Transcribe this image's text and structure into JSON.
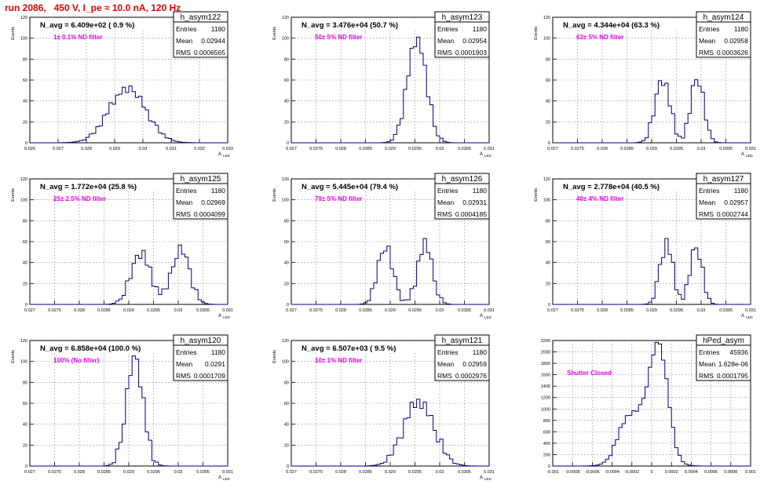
{
  "header": {
    "run_title": "run 2086,   450 V, I_pe ≈ 10.0 nA, 120 Hz"
  },
  "colors": {
    "title_red": "#e00000",
    "note_magenta": "#ee00ee",
    "hist_blue": "#000080",
    "grid": "#999999"
  },
  "chart_data": [
    {
      "type": "histogram",
      "name": "h_asym122",
      "avg_label": "N_avg = 6.409e+02 ( 0.9 %)",
      "note": "1± 0.1% ND filter",
      "stats": {
        "entries": "1180",
        "mean": "0.02944",
        "rms": "0.0006565"
      },
      "ylabel": "Events",
      "xlabel": "A",
      "xlabel_sub": "LED",
      "x_range": [
        0.026,
        0.033
      ],
      "y_range": [
        0,
        120
      ],
      "x_ticks": [
        "0.026",
        "0.027",
        "0.028",
        "0.029",
        "0.03",
        "0.031",
        "0.032",
        "0.033"
      ],
      "y_ticks": [
        "0",
        "20",
        "40",
        "60",
        "80",
        "100",
        "120"
      ],
      "peaks": [
        {
          "mu": 0.02945,
          "sigma": 0.00065,
          "h": 52
        }
      ],
      "noise": [
        2,
        -2,
        3,
        -1,
        4,
        -3,
        1,
        -2,
        2,
        -4,
        3,
        0,
        -2,
        4,
        -1,
        2,
        -3,
        1,
        3,
        -2
      ]
    },
    {
      "type": "histogram",
      "name": "h_asym123",
      "avg_label": "N_avg = 3.476e+04 (50.7 %)",
      "note": "50± 5% ND filter",
      "stats": {
        "entries": "1180",
        "mean": "0.02954",
        "rms": "0.0001903"
      },
      "ylabel": "Events",
      "xlabel": "A",
      "xlabel_sub": "LED",
      "x_range": [
        0.027,
        0.031
      ],
      "y_range": [
        0,
        120
      ],
      "x_ticks": [
        "0.027",
        "0.0275",
        "0.028",
        "0.0285",
        "0.029",
        "0.0295",
        "0.03",
        "0.0305",
        "0.031"
      ],
      "y_ticks": [
        "0",
        "20",
        "40",
        "60",
        "80",
        "100",
        "120"
      ],
      "peaks": [
        {
          "mu": 0.02954,
          "sigma": 0.00019,
          "h": 100
        }
      ],
      "noise": [
        3,
        -4,
        6,
        -2,
        5,
        -6,
        2,
        -3,
        4,
        -5,
        6,
        -1,
        -3,
        5,
        -2,
        3
      ]
    },
    {
      "type": "histogram",
      "name": "h_asym124",
      "avg_label": "N_avg = 4.344e+04 (63.3 %)",
      "note": "63± 5% ND filter",
      "stats": {
        "entries": "1180",
        "mean": "0.02958",
        "rms": "0.0003626"
      },
      "ylabel": "Events",
      "xlabel": "A",
      "xlabel_sub": "LED",
      "x_range": [
        0.027,
        0.031
      ],
      "y_range": [
        0,
        120
      ],
      "x_ticks": [
        "0.027",
        "0.0275",
        "0.028",
        "0.0285",
        "0.029",
        "0.0295",
        "0.03",
        "0.0305",
        "0.031"
      ],
      "y_ticks": [
        "0",
        "20",
        "40",
        "60",
        "80",
        "100",
        "120"
      ],
      "peaks": [
        {
          "mu": 0.02922,
          "sigma": 0.00015,
          "h": 60
        },
        {
          "mu": 0.02992,
          "sigma": 0.00013,
          "h": 62
        }
      ],
      "noise": [
        3,
        -5,
        5,
        -2,
        6,
        -4,
        2,
        -6,
        4,
        -3,
        5,
        -1,
        -4,
        6,
        -2,
        3
      ]
    },
    {
      "type": "histogram",
      "name": "h_asym125",
      "avg_label": "N_avg = 1.772e+04 (25.8 %)",
      "note": "25± 2.5% ND filter",
      "stats": {
        "entries": "1180",
        "mean": "0.02969",
        "rms": "0.0004099"
      },
      "ylabel": "Events",
      "xlabel": "A",
      "xlabel_sub": "LED",
      "x_range": [
        0.027,
        0.031
      ],
      "y_range": [
        0,
        120
      ],
      "x_ticks": [
        "0.027",
        "0.0275",
        "0.028",
        "0.0285",
        "0.029",
        "0.0295",
        "0.03",
        "0.0305",
        "0.031"
      ],
      "y_ticks": [
        "0",
        "20",
        "40",
        "60",
        "80",
        "100",
        "120"
      ],
      "peaks": [
        {
          "mu": 0.02925,
          "sigma": 0.0002,
          "h": 48
        },
        {
          "mu": 0.03005,
          "sigma": 0.00018,
          "h": 52
        }
      ],
      "noise": [
        3,
        -4,
        5,
        -3,
        4,
        -5,
        2,
        -3,
        5,
        -2,
        4,
        -1,
        -3,
        5,
        -2,
        3
      ]
    },
    {
      "type": "histogram",
      "name": "h_asym126",
      "avg_label": "N_avg = 5.445e+04 (79.4 %)",
      "note": "79± 5% ND filter",
      "stats": {
        "entries": "1180",
        "mean": "0.02931",
        "rms": "0.0004185"
      },
      "ylabel": "Events",
      "xlabel": "A",
      "xlabel_sub": "LED",
      "x_range": [
        0.027,
        0.031
      ],
      "y_range": [
        0,
        120
      ],
      "x_ticks": [
        "0.027",
        "0.0275",
        "0.028",
        "0.0285",
        "0.029",
        "0.0295",
        "0.03",
        "0.0305",
        "0.031"
      ],
      "y_ticks": [
        "0",
        "20",
        "40",
        "60",
        "80",
        "100",
        "120"
      ],
      "peaks": [
        {
          "mu": 0.0289,
          "sigma": 0.00015,
          "h": 55
        },
        {
          "mu": 0.0297,
          "sigma": 0.00015,
          "h": 57
        }
      ],
      "noise": [
        4,
        -5,
        6,
        -3,
        5,
        -6,
        3,
        -4,
        6,
        -2,
        5,
        -1,
        -4,
        6,
        -3,
        4
      ]
    },
    {
      "type": "histogram",
      "name": "h_asym127",
      "avg_label": "N_avg = 2.778e+04 (40.5 %)",
      "note": "40± 4% ND filter",
      "stats": {
        "entries": "1180",
        "mean": "0.02957",
        "rms": "0.0002744"
      },
      "ylabel": "Events",
      "xlabel": "A",
      "xlabel_sub": "LED",
      "x_range": [
        0.027,
        0.031
      ],
      "y_range": [
        0,
        120
      ],
      "x_ticks": [
        "0.027",
        "0.0275",
        "0.028",
        "0.0285",
        "0.029",
        "0.0295",
        "0.03",
        "0.0305",
        "0.031"
      ],
      "y_ticks": [
        "0",
        "20",
        "40",
        "60",
        "80",
        "100",
        "120"
      ],
      "peaks": [
        {
          "mu": 0.0293,
          "sigma": 0.00013,
          "h": 58
        },
        {
          "mu": 0.0299,
          "sigma": 0.00012,
          "h": 55
        }
      ],
      "noise": [
        4,
        -6,
        5,
        -3,
        6,
        -4,
        3,
        -5,
        6,
        -2,
        5,
        -1,
        -4,
        6,
        -3,
        4
      ]
    },
    {
      "type": "histogram",
      "name": "h_asym120",
      "avg_label": "N_avg = 6.858e+04 (100.0 %)",
      "note": "100% (No filter)",
      "stats": {
        "entries": "1180",
        "mean": "0.0291",
        "rms": "0.0001709"
      },
      "ylabel": "Events",
      "xlabel": "A",
      "xlabel_sub": "LED",
      "x_range": [
        0.027,
        0.031
      ],
      "y_range": [
        0,
        120
      ],
      "x_ticks": [
        "0.027",
        "0.0275",
        "0.028",
        "0.0285",
        "0.029",
        "0.0295",
        "0.03",
        "0.0305",
        "0.031"
      ],
      "y_ticks": [
        "0",
        "20",
        "40",
        "60",
        "80",
        "100",
        "120"
      ],
      "peaks": [
        {
          "mu": 0.02912,
          "sigma": 0.00017,
          "h": 102
        }
      ],
      "noise": [
        4,
        -6,
        7,
        -3,
        6,
        -7,
        3,
        -4,
        5,
        -6,
        7,
        -2,
        -4,
        6,
        -3,
        4
      ]
    },
    {
      "type": "histogram",
      "name": "h_asym121",
      "avg_label": "N_avg = 6.507e+03 ( 9.5 %)",
      "note": "10± 1% ND filter",
      "stats": {
        "entries": "1180",
        "mean": "0.02959",
        "rms": "0.0002976"
      },
      "ylabel": "Events",
      "xlabel": "A",
      "xlabel_sub": "LED",
      "x_range": [
        0.027,
        0.031
      ],
      "y_range": [
        0,
        120
      ],
      "x_ticks": [
        "0.027",
        "0.0275",
        "0.028",
        "0.0285",
        "0.029",
        "0.0295",
        "0.03",
        "0.0305",
        "0.031"
      ],
      "y_ticks": [
        "0",
        "20",
        "40",
        "60",
        "80",
        "100",
        "120"
      ],
      "peaks": [
        {
          "mu": 0.02958,
          "sigma": 0.0003,
          "h": 62
        }
      ],
      "noise": [
        3,
        -5,
        5,
        -2,
        6,
        -4,
        2,
        -6,
        4,
        -3,
        5,
        -1,
        -4,
        6,
        -2,
        3
      ]
    },
    {
      "type": "histogram",
      "name": "hPed_asym",
      "avg_label": "",
      "note": "Shutter Closed",
      "stats": {
        "entries": "45936",
        "mean": "1.628e-06",
        "rms": "0.0001795"
      },
      "ylabel": "",
      "xlabel": "",
      "xlabel_sub": "",
      "x_range": [
        -0.001,
        0.001
      ],
      "y_range": [
        0,
        2300
      ],
      "x_ticks": [
        "-0.001",
        "-0.0008",
        "-0.0006",
        "-0.0004",
        "-0.0002",
        "0",
        "0.0002",
        "0.0004",
        "0.0006",
        "0.0008",
        "0.001"
      ],
      "y_ticks": [
        "0",
        "200",
        "400",
        "600",
        "800",
        "1000",
        "1200",
        "1400",
        "1600",
        "1800",
        "2000",
        "2200"
      ],
      "peaks": [
        {
          "mu": 8e-05,
          "sigma": 9e-05,
          "h": 1750
        },
        {
          "mu": -0.0001,
          "sigma": 0.00016,
          "h": 900
        },
        {
          "mu": -0.00028,
          "sigma": 8e-05,
          "h": 350
        }
      ],
      "noise": [
        20,
        -30,
        40,
        -20,
        30,
        -40,
        15,
        -25,
        35,
        -15,
        25,
        -10,
        -30,
        40,
        -20,
        30
      ]
    }
  ]
}
